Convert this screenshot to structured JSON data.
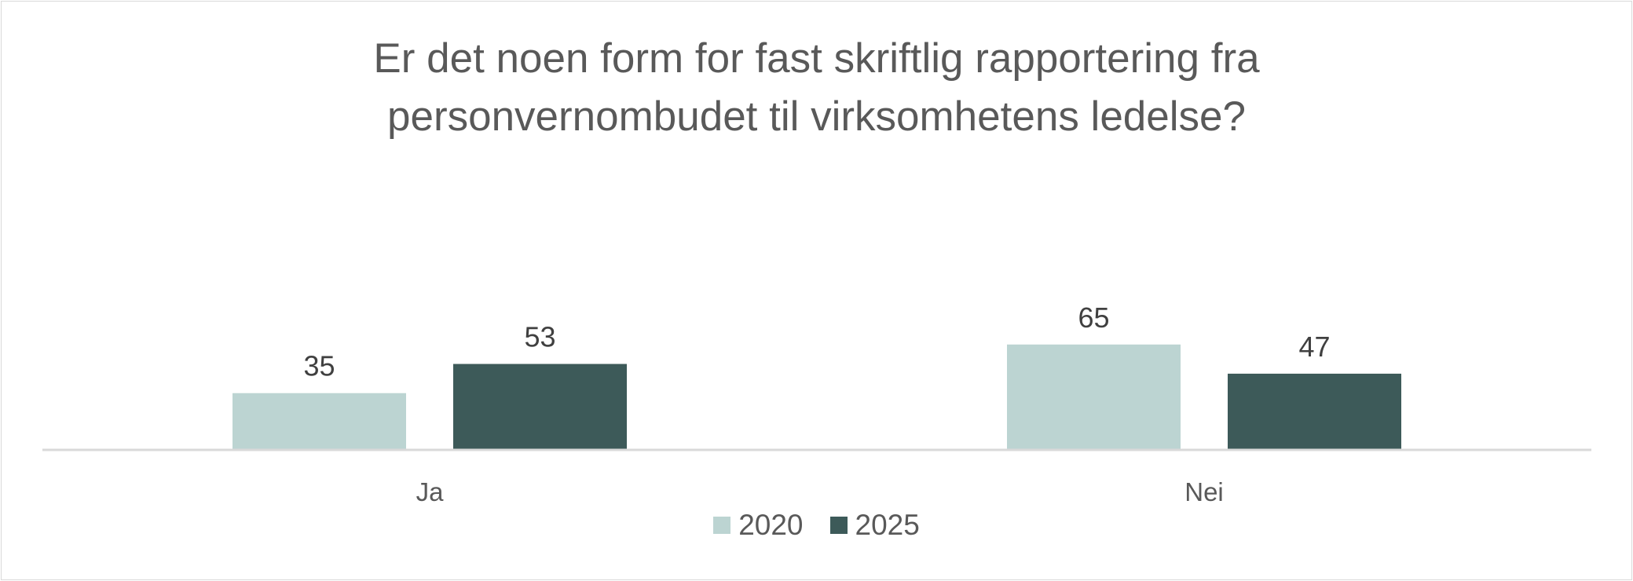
{
  "chart_data": {
    "type": "bar",
    "title_lines": [
      "Er det noen form for fast skriftlig rapportering fra",
      "personvernombudet til virksomhetens ledelse?"
    ],
    "categories": [
      "Ja",
      "Nei"
    ],
    "series": [
      {
        "name": "2020",
        "values": [
          35,
          65
        ],
        "color": "#bcd4d2"
      },
      {
        "name": "2025",
        "values": [
          53,
          47
        ],
        "color": "#3d5a59"
      }
    ],
    "ylim": [
      0,
      100
    ],
    "grid": false,
    "data_labels": true,
    "legend_position": "bottom"
  }
}
